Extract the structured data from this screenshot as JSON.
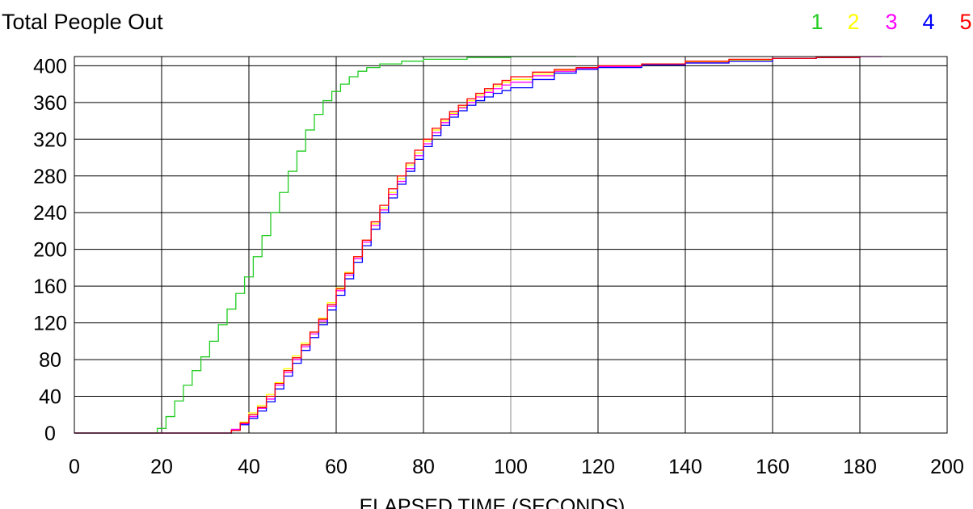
{
  "chart_data": {
    "type": "line",
    "title": "Total People Out",
    "xlabel": "ELAPSED TIME (SECONDS)",
    "ylabel": "",
    "xlim": [
      0,
      200
    ],
    "ylim": [
      0,
      410
    ],
    "x_ticks": [
      0,
      20,
      40,
      60,
      80,
      100,
      120,
      140,
      160,
      180,
      200
    ],
    "y_ticks": [
      0,
      40,
      80,
      120,
      160,
      200,
      240,
      280,
      320,
      360,
      400
    ],
    "grid": true,
    "legend_position": "top-right",
    "series": [
      {
        "name": "1",
        "color": "#22cc22",
        "x": [
          0,
          17,
          19,
          21,
          23,
          25,
          27,
          29,
          31,
          33,
          35,
          37,
          39,
          41,
          43,
          45,
          47,
          49,
          51,
          53,
          55,
          57,
          59,
          61,
          63,
          65,
          67,
          70,
          75,
          80,
          90,
          100,
          105,
          110,
          115
        ],
        "y": [
          0,
          0,
          5,
          18,
          35,
          52,
          68,
          83,
          100,
          118,
          135,
          152,
          170,
          192,
          215,
          240,
          262,
          285,
          307,
          330,
          347,
          362,
          372,
          380,
          388,
          394,
          398,
          402,
          405,
          407,
          409,
          410,
          410,
          410,
          410
        ]
      },
      {
        "name": "2",
        "color": "#ffff00",
        "x": [
          0,
          30,
          36,
          38,
          40,
          42,
          44,
          46,
          48,
          50,
          52,
          54,
          56,
          58,
          60,
          62,
          64,
          66,
          68,
          70,
          72,
          74,
          76,
          78,
          80,
          82,
          84,
          86,
          88,
          90,
          92,
          94,
          96,
          98,
          100,
          105,
          110,
          115,
          120,
          130,
          140,
          150,
          160,
          170,
          180
        ],
        "y": [
          0,
          0,
          3,
          12,
          22,
          30,
          42,
          55,
          70,
          84,
          98,
          110,
          125,
          142,
          158,
          175,
          192,
          210,
          228,
          245,
          262,
          277,
          292,
          305,
          318,
          330,
          340,
          348,
          355,
          362,
          368,
          373,
          378,
          382,
          385,
          391,
          395,
          397,
          399,
          402,
          404,
          406,
          408,
          409,
          410
        ]
      },
      {
        "name": "3",
        "color": "#ff00ff",
        "x": [
          0,
          30,
          36,
          38,
          40,
          42,
          44,
          46,
          48,
          50,
          52,
          54,
          56,
          58,
          60,
          62,
          64,
          66,
          68,
          70,
          72,
          74,
          76,
          78,
          80,
          82,
          84,
          86,
          88,
          90,
          92,
          94,
          96,
          98,
          100,
          105,
          110,
          115,
          120,
          130,
          140,
          150,
          160,
          170,
          180,
          185
        ],
        "y": [
          0,
          0,
          4,
          10,
          18,
          27,
          37,
          52,
          66,
          80,
          94,
          108,
          122,
          138,
          155,
          172,
          190,
          208,
          226,
          243,
          260,
          274,
          288,
          302,
          315,
          327,
          338,
          347,
          354,
          360,
          366,
          371,
          375,
          379,
          382,
          389,
          394,
          397,
          399,
          401,
          403,
          405,
          408,
          409,
          410,
          410
        ]
      },
      {
        "name": "4",
        "color": "#0000ff",
        "x": [
          0,
          30,
          36,
          38,
          40,
          42,
          44,
          46,
          48,
          50,
          52,
          54,
          56,
          58,
          60,
          62,
          64,
          66,
          68,
          70,
          72,
          74,
          76,
          78,
          80,
          82,
          84,
          86,
          88,
          90,
          92,
          94,
          96,
          98,
          100,
          105,
          110,
          115,
          120,
          130,
          140,
          150,
          160,
          170,
          180
        ],
        "y": [
          0,
          0,
          3,
          9,
          16,
          24,
          34,
          48,
          62,
          76,
          90,
          104,
          118,
          134,
          150,
          168,
          186,
          204,
          222,
          240,
          256,
          271,
          285,
          298,
          312,
          324,
          335,
          344,
          351,
          357,
          362,
          366,
          370,
          373,
          376,
          385,
          392,
          396,
          398,
          401,
          403,
          405,
          408,
          409,
          410
        ]
      },
      {
        "name": "5",
        "color": "#ff0000",
        "x": [
          0,
          30,
          36,
          38,
          40,
          42,
          44,
          46,
          48,
          50,
          52,
          54,
          56,
          58,
          60,
          62,
          64,
          66,
          68,
          70,
          72,
          74,
          76,
          78,
          80,
          82,
          84,
          86,
          88,
          90,
          92,
          94,
          96,
          98,
          100,
          105,
          110,
          115,
          120,
          130,
          140,
          150,
          160,
          170,
          180
        ],
        "y": [
          0,
          0,
          3,
          11,
          20,
          28,
          40,
          54,
          68,
          82,
          96,
          110,
          124,
          140,
          157,
          174,
          192,
          210,
          230,
          248,
          266,
          280,
          294,
          308,
          320,
          332,
          342,
          350,
          357,
          364,
          370,
          375,
          380,
          384,
          388,
          393,
          396,
          398,
          400,
          402,
          405,
          407,
          408,
          409,
          410
        ]
      }
    ]
  }
}
